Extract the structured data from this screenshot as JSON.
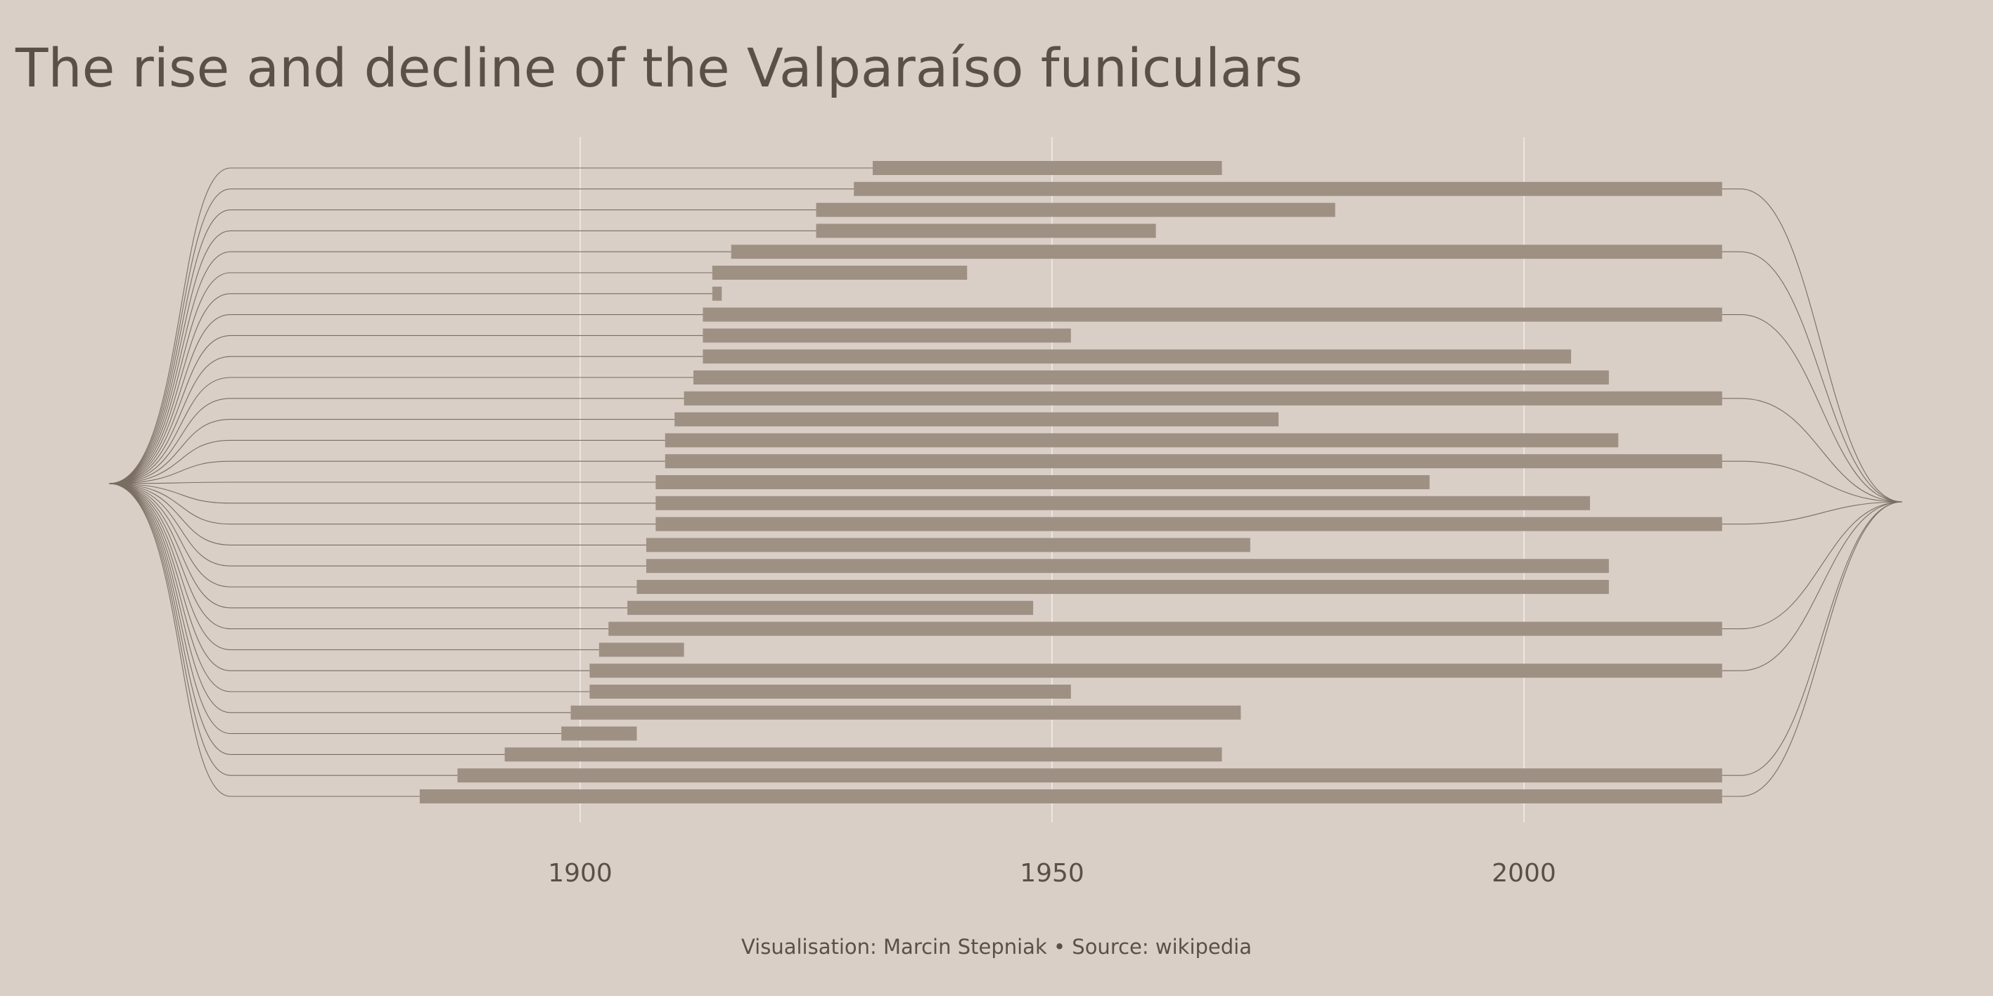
{
  "chart_data": {
    "type": "bar",
    "orientation": "horizontal",
    "title": "The rise and decline of the Valparaíso funiculars",
    "xlabel": "",
    "ylabel": "",
    "xlim": [
      1854,
      2040
    ],
    "x_ticks": [
      1900,
      1950,
      2000
    ],
    "x_tick_labels": [
      "1900",
      "1950",
      "2000"
    ],
    "grid": "vertical lines at ticks",
    "bars": [
      {
        "start": 1931,
        "end": 1968
      },
      {
        "start": 1929,
        "end": 2021
      },
      {
        "start": 1925,
        "end": 1980
      },
      {
        "start": 1925,
        "end": 1961
      },
      {
        "start": 1916,
        "end": 2021
      },
      {
        "start": 1914,
        "end": 1941
      },
      {
        "start": 1914,
        "end": 1915
      },
      {
        "start": 1913,
        "end": 2021
      },
      {
        "start": 1913,
        "end": 1952
      },
      {
        "start": 1913,
        "end": 2005
      },
      {
        "start": 1912,
        "end": 2009
      },
      {
        "start": 1911,
        "end": 2021
      },
      {
        "start": 1910,
        "end": 1974
      },
      {
        "start": 1909,
        "end": 2010
      },
      {
        "start": 1909,
        "end": 2021
      },
      {
        "start": 1908,
        "end": 1990
      },
      {
        "start": 1908,
        "end": 2007
      },
      {
        "start": 1908,
        "end": 2021
      },
      {
        "start": 1907,
        "end": 1971
      },
      {
        "start": 1907,
        "end": 2009
      },
      {
        "start": 1906,
        "end": 2009
      },
      {
        "start": 1905,
        "end": 1948
      },
      {
        "start": 1903,
        "end": 2021
      },
      {
        "start": 1902,
        "end": 1911
      },
      {
        "start": 1901,
        "end": 2021
      },
      {
        "start": 1901,
        "end": 1952
      },
      {
        "start": 1899,
        "end": 1970
      },
      {
        "start": 1898,
        "end": 1906
      },
      {
        "start": 1892,
        "end": 1968
      },
      {
        "start": 1887,
        "end": 2021
      },
      {
        "start": 1883,
        "end": 2021
      }
    ],
    "still_active_end_year": 2021
  },
  "caption": "Visualisation: Marcin Stepniak  •  Source: wikipedia",
  "colors": {
    "background": "#d9cfc7",
    "bar": "#9e9184",
    "curve": "#7a6e62",
    "grid": "#f2ede8",
    "text": "#5a5047"
  }
}
